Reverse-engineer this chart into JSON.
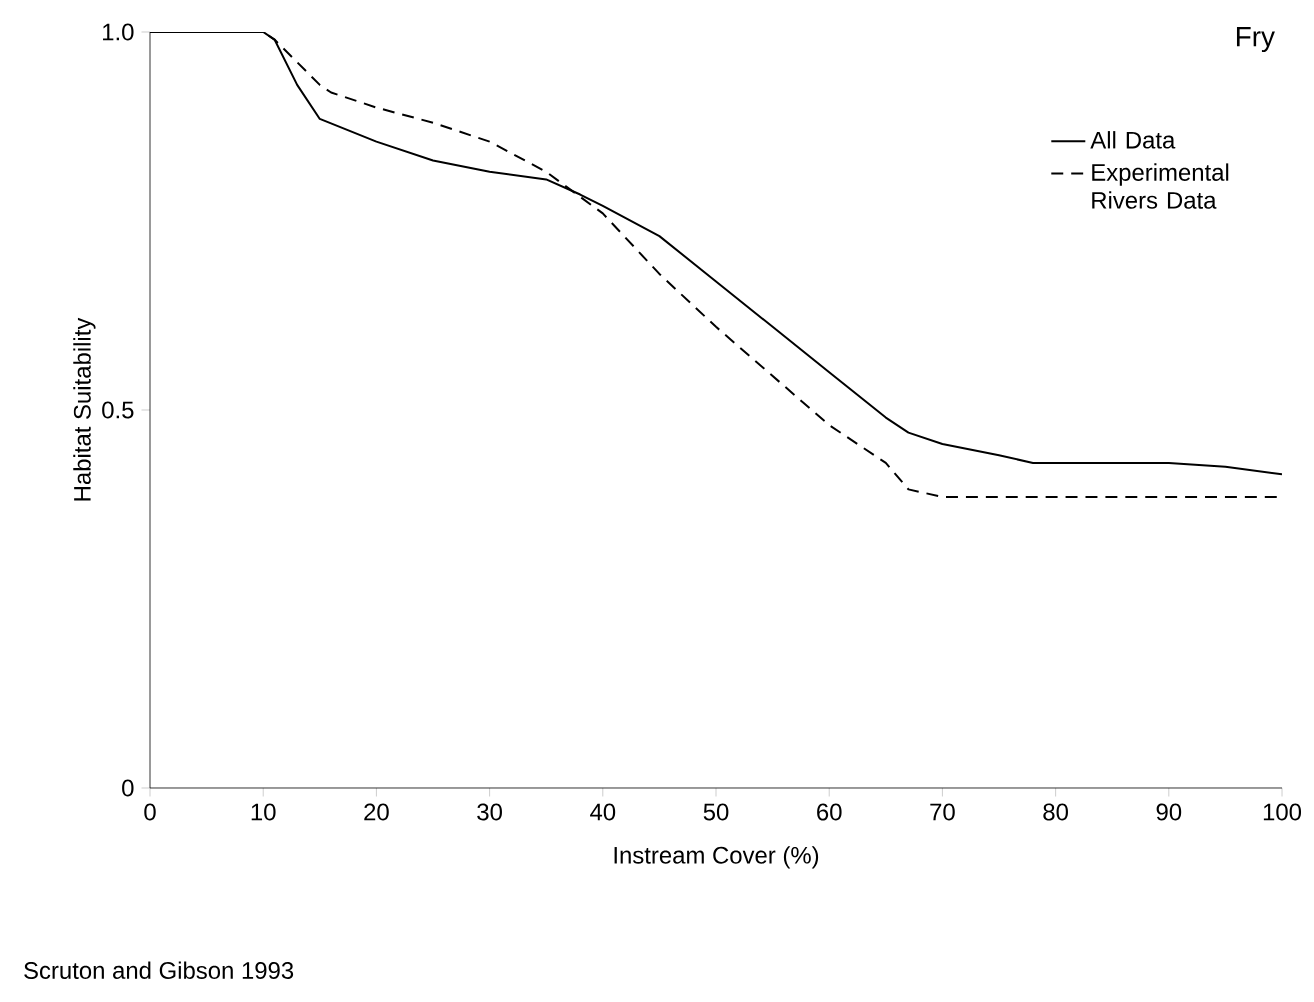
{
  "chart_data": {
    "type": "line",
    "title": "Fry",
    "xlabel": "Instream Cover (%)",
    "ylabel": "Habitat Suitability",
    "xlim": [
      0,
      100
    ],
    "ylim": [
      0,
      1
    ],
    "xticks": [
      0,
      10,
      20,
      30,
      40,
      50,
      60,
      70,
      80,
      90,
      100
    ],
    "yticks": [
      0,
      0.5,
      {
        "value": 1,
        "label": "1.0"
      }
    ],
    "legend": "top right",
    "grid": false,
    "marker": "none",
    "series": [
      {
        "name": "All Data",
        "color": "#000000",
        "line_style": "solid",
        "x": [
          0,
          10,
          11,
          13,
          15,
          20,
          25,
          30,
          35,
          38,
          40,
          45,
          50,
          55,
          60,
          65,
          67,
          70,
          75,
          78,
          90,
          95,
          100
        ],
        "values": [
          1.0,
          1.0,
          0.99,
          0.93,
          0.885,
          0.855,
          0.83,
          0.815,
          0.805,
          0.785,
          0.77,
          0.73,
          0.67,
          0.61,
          0.55,
          0.49,
          0.47,
          0.455,
          0.44,
          0.43,
          0.43,
          0.425,
          0.415
        ]
      },
      {
        "name": "Experimental Rivers Data",
        "color": "#000000",
        "line_style": "dashed",
        "x": [
          0,
          10,
          11,
          15,
          16,
          20,
          25,
          30,
          35,
          40,
          45,
          50,
          55,
          60,
          65,
          67,
          70,
          100
        ],
        "values": [
          1.0,
          1.0,
          0.99,
          0.93,
          0.92,
          0.9,
          0.88,
          0.855,
          0.815,
          0.76,
          0.68,
          0.61,
          0.545,
          0.48,
          0.43,
          0.395,
          0.385,
          0.385
        ]
      }
    ],
    "annotations": [
      "Scruton and Gibson 1993"
    ]
  }
}
